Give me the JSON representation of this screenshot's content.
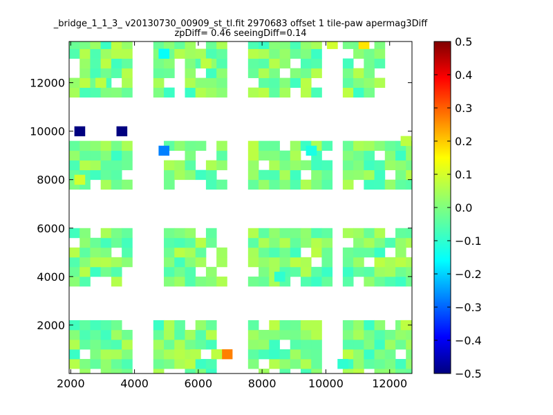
{
  "chart_data": {
    "type": "heatmap",
    "title": "_bridge_1_1_3_ v20130730_00909_st_tl.fit 2970683 offset 1 tile-paw apermag3Diff",
    "subtitle": "zpDiff= 0.46 seeingDiff=0.14",
    "xlabel": "",
    "ylabel": "",
    "xlim": [
      1950,
      12700
    ],
    "ylim": [
      0,
      13700
    ],
    "x_ticks": [
      2000,
      4000,
      6000,
      8000,
      10000,
      12000
    ],
    "x_tick_labels": [
      "2000",
      "4000",
      "6000",
      "8000",
      "10000",
      "12000"
    ],
    "y_ticks": [
      2000,
      4000,
      6000,
      8000,
      10000,
      12000
    ],
    "y_tick_labels": [
      "2000",
      "4000",
      "6000",
      "8000",
      "10000",
      "12000"
    ],
    "grid": false,
    "colorbar": {
      "vmin": -0.5,
      "vmax": 0.5,
      "colormap": "jet",
      "ticks": [
        0.5,
        0.4,
        0.3,
        0.2,
        0.1,
        0.0,
        -0.1,
        -0.2,
        -0.3,
        -0.4,
        -0.5
      ],
      "tick_labels": [
        "0.5",
        "0.4",
        "0.3",
        "0.2",
        "0.1",
        "0.0",
        "−0.1",
        "−0.2",
        "−0.3",
        "−0.4",
        "−0.5"
      ]
    },
    "cell_width": 330,
    "cell_height": 400,
    "regions": [
      {
        "x_range": [
          1950,
          3930
        ],
        "y_range": [
          0,
          2000
        ]
      },
      {
        "x_range": [
          4590,
          6570
        ],
        "y_range": [
          0,
          2000
        ]
      },
      {
        "x_range": [
          7560,
          9870
        ],
        "y_range": [
          0,
          2000
        ]
      },
      {
        "x_range": [
          10530,
          12700
        ],
        "y_range": [
          0,
          2000
        ]
      },
      {
        "x_range": [
          1950,
          3930
        ],
        "y_range": [
          3800,
          6000
        ]
      },
      {
        "x_range": [
          4920,
          6900
        ],
        "y_range": [
          3800,
          6000
        ]
      },
      {
        "x_range": [
          7560,
          10200
        ],
        "y_range": [
          3800,
          6000
        ]
      },
      {
        "x_range": [
          10530,
          12700
        ],
        "y_range": [
          3800,
          6000
        ]
      },
      {
        "x_range": [
          1950,
          3930
        ],
        "y_range": [
          7800,
          9600
        ]
      },
      {
        "x_range": [
          4920,
          6900
        ],
        "y_range": [
          7800,
          9600
        ]
      },
      {
        "x_range": [
          7560,
          10200
        ],
        "y_range": [
          7800,
          9600
        ]
      },
      {
        "x_range": [
          10530,
          12700
        ],
        "y_range": [
          7800,
          9600
        ]
      },
      {
        "x_range": [
          1950,
          3930
        ],
        "y_range": [
          11600,
          13700
        ]
      },
      {
        "x_range": [
          4590,
          6900
        ],
        "y_range": [
          11600,
          13700
        ]
      },
      {
        "x_range": [
          7560,
          9870
        ],
        "y_range": [
          11600,
          13700
        ]
      },
      {
        "x_range": [
          10530,
          11850
        ],
        "y_range": [
          11600,
          13700
        ]
      }
    ],
    "highlight_cells": [
      {
        "x": 2280,
        "y": 10000,
        "value": -0.5
      },
      {
        "x": 3600,
        "y": 10000,
        "value": -0.5
      },
      {
        "x": 4920,
        "y": 9200,
        "value": -0.25
      },
      {
        "x": 4920,
        "y": 13200,
        "value": -0.12
      },
      {
        "x": 6900,
        "y": 800,
        "value": 0.25
      },
      {
        "x": 11190,
        "y": 13600,
        "value": 0.15
      },
      {
        "x": 2280,
        "y": 8000,
        "value": 0.08
      },
      {
        "x": 9540,
        "y": 9200,
        "value": -0.1
      },
      {
        "x": 10530,
        "y": 400,
        "value": -0.08
      },
      {
        "x": 8550,
        "y": 4000,
        "value": -0.08
      },
      {
        "x": 5910,
        "y": 800,
        "value": 0.05
      },
      {
        "x": 6570,
        "y": 800,
        "value": 0.06
      },
      {
        "x": 12510,
        "y": 2000,
        "value": 0.06
      },
      {
        "x": 12510,
        "y": 9600,
        "value": 0.06
      },
      {
        "x": 2940,
        "y": 12000,
        "value": 0.06
      },
      {
        "x": 6240,
        "y": 12800,
        "value": 0.06
      },
      {
        "x": 10200,
        "y": 13600,
        "value": 0.08
      }
    ]
  }
}
